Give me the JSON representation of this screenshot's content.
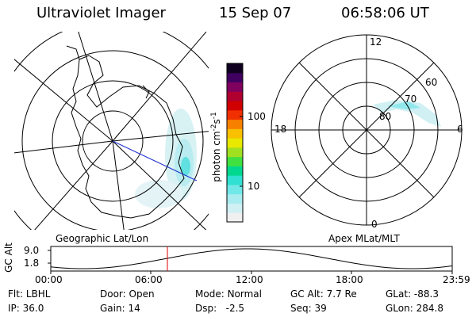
{
  "header": {
    "instrument": "Ultraviolet Imager",
    "date": "15 Sep 07",
    "time": "06:58:06 UT"
  },
  "geo_panel": {
    "label": "Geographic Lat/Lon"
  },
  "mag_panel": {
    "label": "Apex MLat/MLT",
    "mlt_labels": {
      "top": "12",
      "left": "18",
      "right": "6",
      "bottom": "0"
    },
    "lat_labels": [
      "80",
      "70",
      "60"
    ]
  },
  "colorbar": {
    "unit": "photon cm",
    "unit_sup1": "-2",
    "unit_mid": "s",
    "unit_sup2": "-1",
    "ticks": [
      "100",
      "10"
    ],
    "colors": [
      "#f0f0f0",
      "#d0f0f4",
      "#a8ecf0",
      "#70e8e8",
      "#30e0d0",
      "#00d890",
      "#40e040",
      "#a0e020",
      "#e8e800",
      "#f8c000",
      "#f88000",
      "#f03000",
      "#d00000",
      "#b00030",
      "#800060",
      "#400060",
      "#100020"
    ]
  },
  "timeline": {
    "ylabel": "GC Alt",
    "y_ticks": [
      "9.0",
      "1.8"
    ],
    "x_ticks": [
      "00:00",
      "06:00",
      "12:00",
      "18:00",
      "23:59"
    ],
    "current_time_hours": 6.97,
    "ylim": [
      1.8,
      9.0
    ]
  },
  "info": {
    "flt_label": "Flt:",
    "flt": "LBHL",
    "ip_label": "IP:",
    "ip": "36.0",
    "door_label": "Door:",
    "door": "Open",
    "gain_label": "Gain:",
    "gain": "14",
    "mode_label": "Mode:",
    "mode": "Normal",
    "dsp_label": "Dsp:",
    "dsp": "-2.5",
    "gcalt_label": "GC Alt:",
    "gcalt": "7.7 Re",
    "seq_label": "Seq:",
    "seq": "39",
    "glat_label": "GLat:",
    "glat": "-88.3",
    "glon_label": "GLon:",
    "glon": "284.8"
  }
}
